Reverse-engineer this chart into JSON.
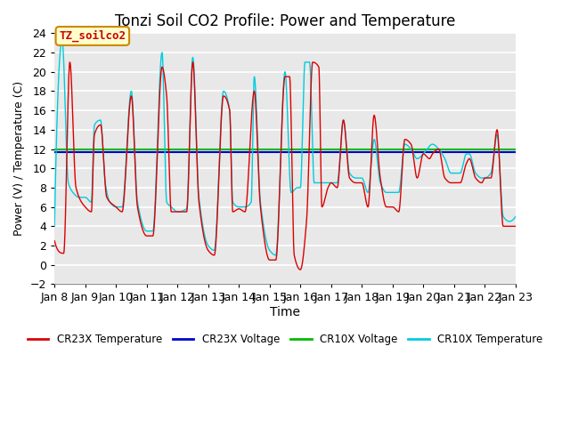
{
  "title": "Tonzi Soil CO2 Profile: Power and Temperature",
  "xlabel": "Time",
  "ylabel": "Power (V) / Temperature (C)",
  "ylim": [
    -2,
    24
  ],
  "x_tick_labels": [
    "Jan 8",
    "Jan 9",
    "Jan 10",
    "Jan 11",
    "Jan 12",
    "Jan 13",
    "Jan 14",
    "Jan 15",
    "Jan 16",
    "Jan 17",
    "Jan 18",
    "Jan 19",
    "Jan 20",
    "Jan 21",
    "Jan 22",
    "Jan 23"
  ],
  "cr23x_voltage_value": 11.72,
  "cr10x_voltage_value": 11.97,
  "cr23x_color": "#dd0000",
  "cr10x_color": "#00ccdd",
  "cr23x_voltage_color": "#0000cc",
  "cr10x_voltage_color": "#00bb00",
  "legend_label_cr23x_temp": "CR23X Temperature",
  "legend_label_cr23x_volt": "CR23X Voltage",
  "legend_label_cr10x_volt": "CR10X Voltage",
  "legend_label_cr10x_temp": "CR10X Temperature",
  "annotation_text": "TZ_soilco2",
  "annotation_bg": "#ffffcc",
  "annotation_border": "#cc8800",
  "plot_bg_color": "#e8e8e8",
  "grid_color": "#ffffff",
  "title_fontsize": 12
}
